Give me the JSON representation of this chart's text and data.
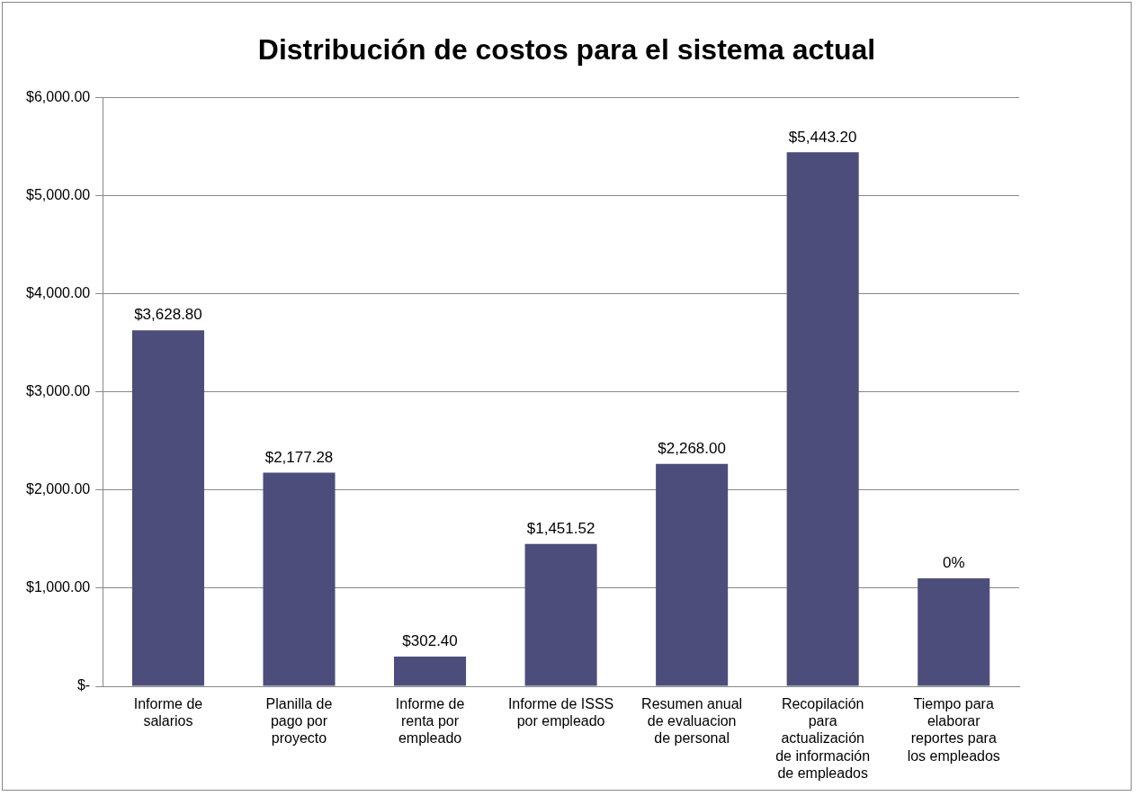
{
  "chart_data": {
    "type": "bar",
    "title": "Distribución de costos para el sistema actual",
    "categories": [
      "Informe de salarios",
      "Planilla de pago por proyecto",
      "Informe de renta por empleado",
      "Informe de ISSS por empleado",
      "Resumen anual de evaluacion de personal",
      "Recopilación para actualización de información de empleados",
      "Tiempo para elaborar reportes para los empleados"
    ],
    "values": [
      3628.8,
      2177.28,
      302.4,
      1451.52,
      2268,
      5443.2,
      1100
    ],
    "value_labels": [
      "$3,628.80",
      "$2,177.28",
      "$302.40",
      "$1,451.52",
      "$2,268.00",
      "$5,443.20",
      null
    ],
    "annotations": [
      {
        "text": "0%",
        "x": "Tiempo para elaborar reportes para los empleados",
        "y": 1100
      }
    ],
    "color": "#4d4d7c",
    "ylim": [
      0,
      6000
    ],
    "yticks": [
      {
        "value": 0,
        "label": "$-"
      },
      {
        "value": 1000,
        "label": "$1,000.00"
      },
      {
        "value": 2000,
        "label": "$2,000.00"
      },
      {
        "value": 3000,
        "label": "$3,000.00"
      },
      {
        "value": 4000,
        "label": "$4,000.00"
      },
      {
        "value": 5000,
        "label": "$5,000.00"
      },
      {
        "value": 6000,
        "label": "$6,000.00"
      }
    ],
    "grid": "y",
    "legend": false
  }
}
